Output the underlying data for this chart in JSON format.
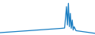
{
  "x": [
    0,
    5,
    10,
    15,
    20,
    25,
    30,
    35,
    40,
    45,
    50,
    55,
    60,
    65,
    68,
    70,
    71,
    72,
    73,
    74,
    75,
    76,
    77,
    78,
    80,
    85,
    90,
    95,
    100
  ],
  "y": [
    2,
    3,
    4,
    5,
    6,
    7,
    8,
    9,
    10,
    11,
    12,
    13,
    14,
    15,
    16,
    80,
    25,
    90,
    20,
    60,
    15,
    40,
    10,
    20,
    8,
    6,
    4,
    2,
    0
  ],
  "line_color": "#1b7ec2",
  "linewidth": 0.9,
  "background_color": "#ffffff",
  "ylim": [
    -5,
    100
  ],
  "xlim": [
    0,
    100
  ]
}
